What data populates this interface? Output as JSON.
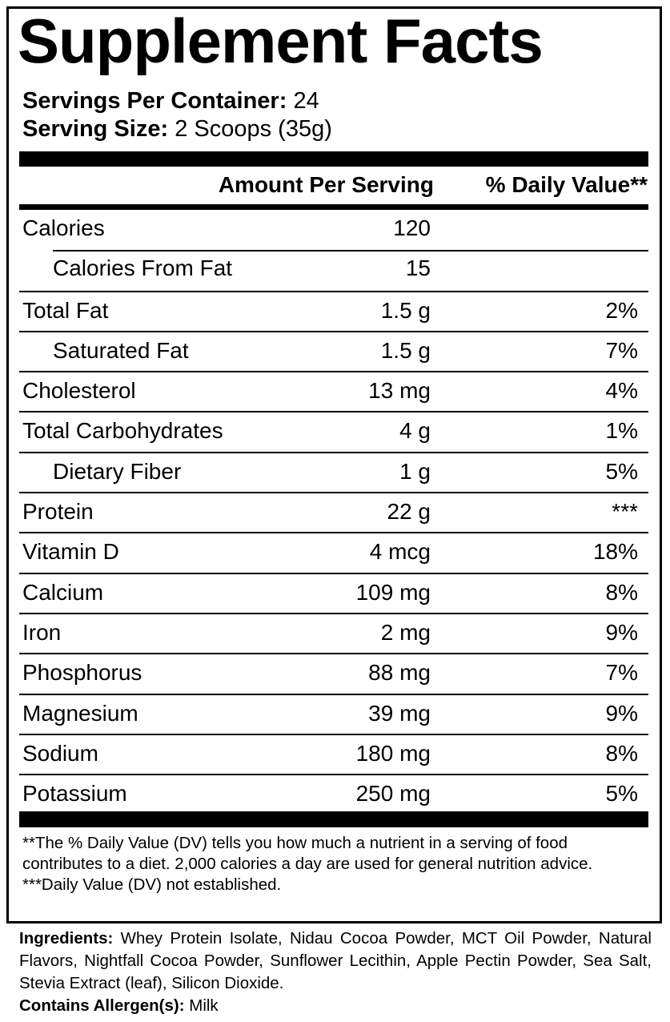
{
  "title": "Supplement Facts",
  "servings_per_container": {
    "label": "Servings Per Container:",
    "value": "24"
  },
  "serving_size": {
    "label": "Serving Size:",
    "value": "2 Scoops (35g)"
  },
  "columns": {
    "amount": "Amount Per Serving",
    "daily_value": "% Daily Value**"
  },
  "rows": [
    {
      "name": "Calories",
      "amount": "120",
      "dv": ""
    },
    {
      "name": "Calories From Fat",
      "amount": "15",
      "dv": ""
    },
    {
      "name": "Total Fat",
      "amount": "1.5 g",
      "dv": "2%"
    },
    {
      "name": "Saturated Fat",
      "amount": "1.5 g",
      "dv": "7%"
    },
    {
      "name": "Cholesterol",
      "amount": "13 mg",
      "dv": "4%"
    },
    {
      "name": "Total Carbohydrates",
      "amount": "4 g",
      "dv": "1%"
    },
    {
      "name": "Dietary Fiber",
      "amount": "1 g",
      "dv": "5%"
    },
    {
      "name": "Protein",
      "amount": "22 g",
      "dv": "***"
    },
    {
      "name": "Vitamin D",
      "amount": "4 mcg",
      "dv": "18%"
    },
    {
      "name": "Calcium",
      "amount": "109 mg",
      "dv": "8%"
    },
    {
      "name": "Iron",
      "amount": "2 mg",
      "dv": "9%"
    },
    {
      "name": "Phosphorus",
      "amount": "88 mg",
      "dv": "7%"
    },
    {
      "name": "Magnesium",
      "amount": "39 mg",
      "dv": "9%"
    },
    {
      "name": "Sodium",
      "amount": "180 mg",
      "dv": "8%"
    },
    {
      "name": "Potassium",
      "amount": "250 mg",
      "dv": "5%"
    }
  ],
  "footnotes": {
    "dv_note": "**The % Daily Value (DV) tells you how much a nutrient in a serving of food contributes to a diet. 2,000 calories a day are used for general nutrition advice.",
    "not_established": "***Daily Value (DV) not established."
  },
  "ingredients": {
    "label": "Ingredients:",
    "text": "Whey Protein Isolate, Nidau Cocoa Powder, MCT Oil Powder, Natural Flavors, Nightfall Cocoa Powder, Sunflower Lecithin, Apple Pectin Powder, Sea Salt, Stevia Extract (leaf), Silicon Dioxide."
  },
  "allergens": {
    "label": "Contains Allergen(s):",
    "text": "Milk"
  }
}
